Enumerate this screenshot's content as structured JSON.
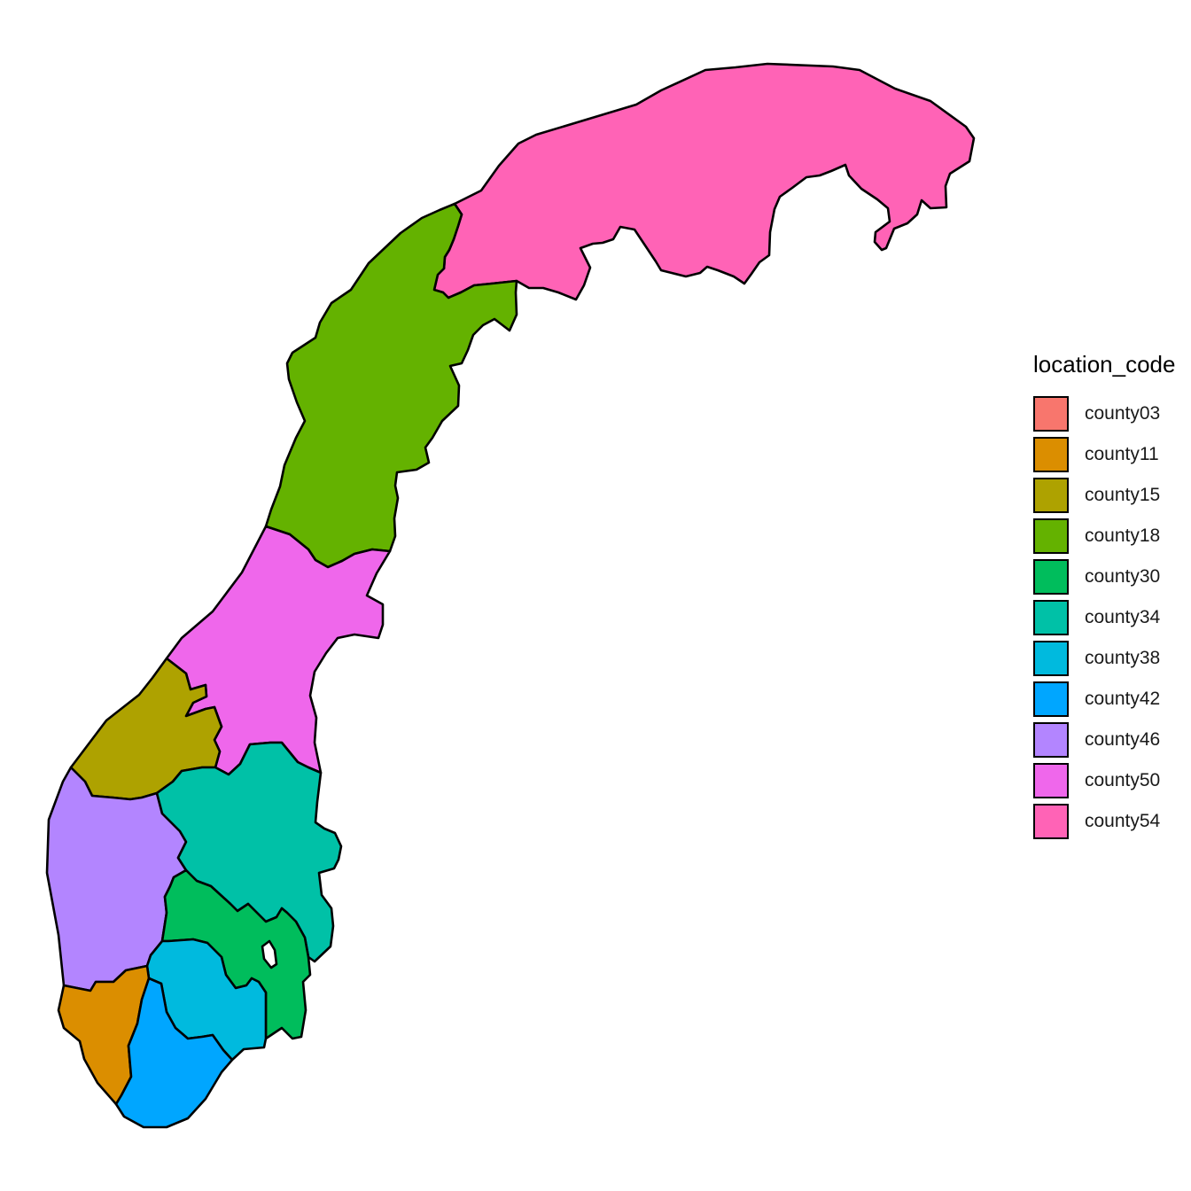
{
  "legend": {
    "title": "location_code",
    "items": [
      {
        "code": "county03",
        "label": "county03",
        "color": "#F8766D"
      },
      {
        "code": "county11",
        "label": "county11",
        "color": "#DB8E00"
      },
      {
        "code": "county15",
        "label": "county15",
        "color": "#AEA200"
      },
      {
        "code": "county18",
        "label": "county18",
        "color": "#64B200"
      },
      {
        "code": "county30",
        "label": "county30",
        "color": "#00BD5C"
      },
      {
        "code": "county34",
        "label": "county34",
        "color": "#00C1A7"
      },
      {
        "code": "county38",
        "label": "county38",
        "color": "#00BADE"
      },
      {
        "code": "county42",
        "label": "county42",
        "color": "#00A6FF"
      },
      {
        "code": "county46",
        "label": "county46",
        "color": "#B385FF"
      },
      {
        "code": "county50",
        "label": "county50",
        "color": "#EF67EB"
      },
      {
        "code": "county54",
        "label": "county54",
        "color": "#FF63B6"
      }
    ]
  },
  "map": {
    "regions": [
      "county54",
      "county18",
      "county50",
      "county15",
      "county46",
      "county34",
      "county30",
      "county38",
      "county11",
      "county42"
    ]
  }
}
